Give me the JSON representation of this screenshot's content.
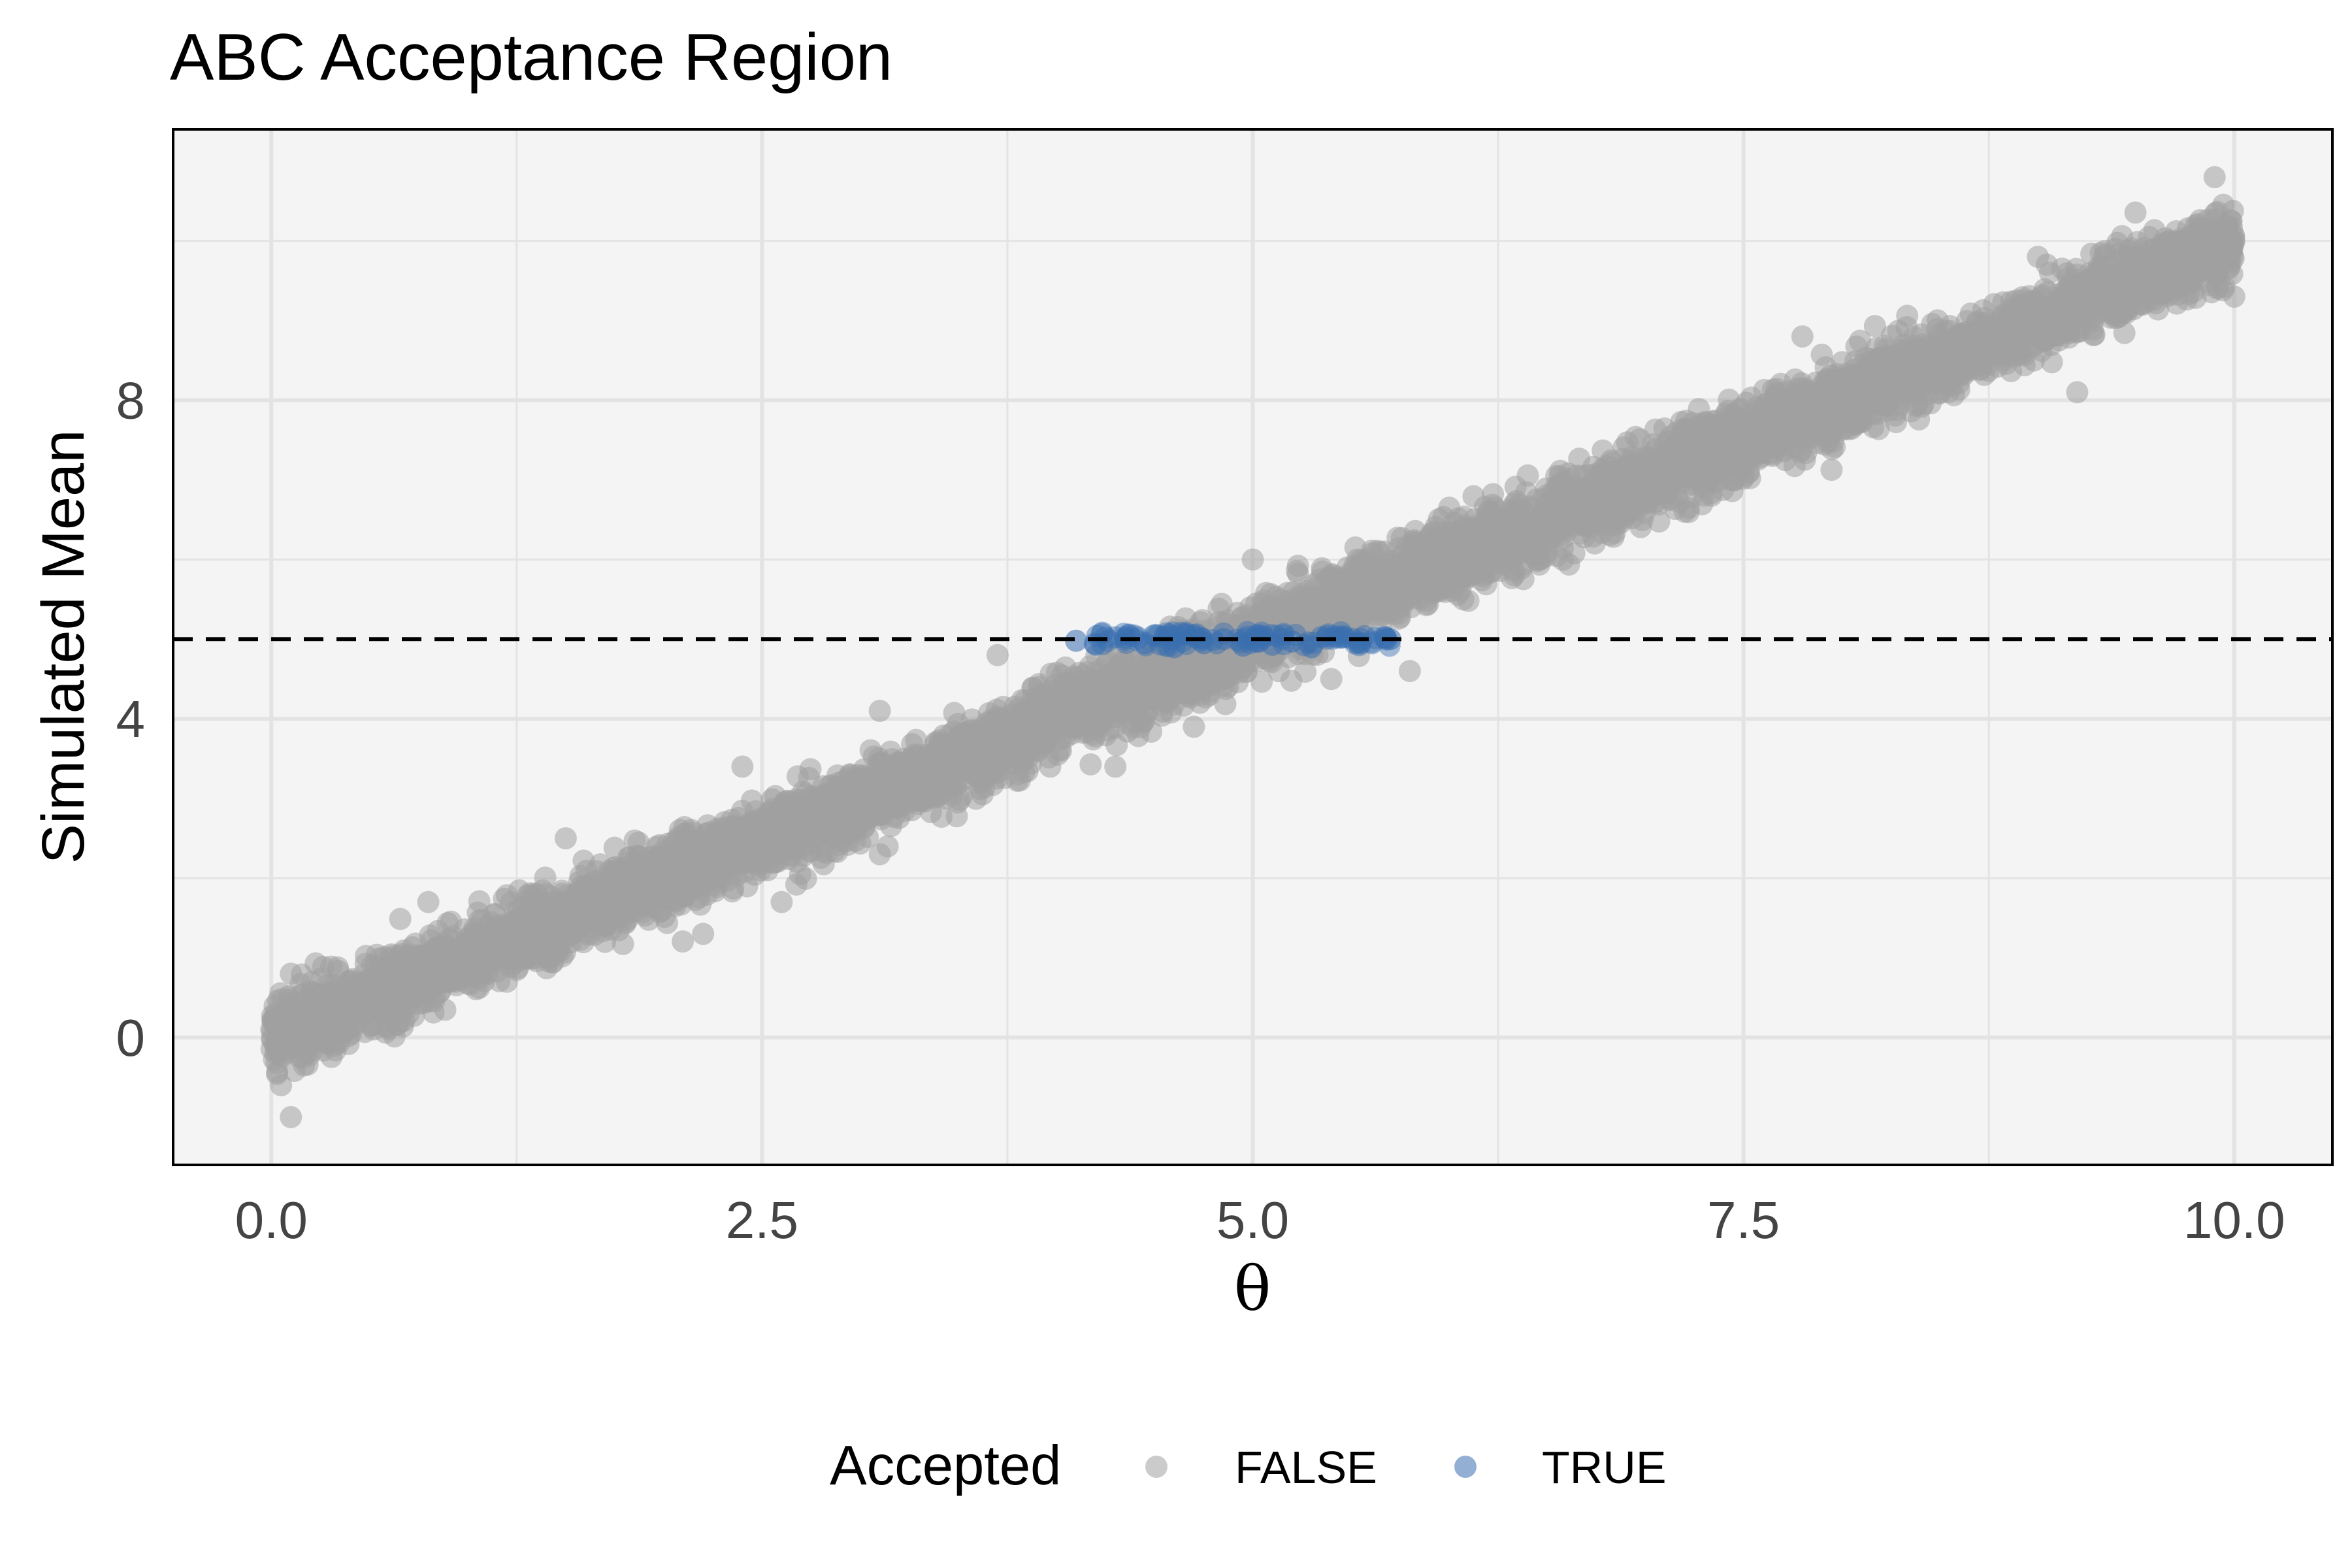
{
  "chart_data": {
    "type": "scatter",
    "title": "ABC Acceptance Region",
    "xlabel": "θ",
    "ylabel": "Simulated Mean",
    "xlim": [
      -0.5,
      10.5
    ],
    "ylim": [
      -1.6,
      11.4
    ],
    "x_ticks": [
      "0.0",
      "2.5",
      "5.0",
      "7.5",
      "10.0"
    ],
    "x_tick_values": [
      0,
      2.5,
      5,
      7.5,
      10
    ],
    "y_ticks": [
      "0",
      "4",
      "8"
    ],
    "y_tick_values": [
      0,
      4,
      8
    ],
    "grid": true,
    "reference_line": {
      "orientation": "horizontal",
      "y": 5,
      "style": "dashed",
      "color": "#000000"
    },
    "legend": {
      "title": "Accepted",
      "position": "bottom",
      "entries": [
        {
          "label": "FALSE",
          "color": "#a0a0a0"
        },
        {
          "label": "TRUE",
          "color": "#3a6fb0"
        }
      ]
    },
    "series": [
      {
        "name": "FALSE",
        "color": "#a0a0a0",
        "description_of_points": "approx. 10000 draws of theta uniform on [0, 10] with simulated mean ≈ theta plus noise; shown here as a sampled cloud",
        "points": [
          [
            0.0,
            0.1
          ],
          [
            0.05,
            -0.6
          ],
          [
            0.1,
            -1.0
          ],
          [
            0.1,
            0.8
          ],
          [
            0.2,
            0.5
          ],
          [
            0.3,
            0.0
          ],
          [
            0.5,
            0.5
          ],
          [
            0.7,
            0.3
          ],
          [
            0.8,
            1.7
          ],
          [
            1.0,
            1.0
          ],
          [
            1.2,
            0.7
          ],
          [
            1.5,
            2.5
          ],
          [
            1.7,
            1.2
          ],
          [
            2.0,
            2.0
          ],
          [
            2.2,
            1.3
          ],
          [
            2.4,
            3.4
          ],
          [
            2.6,
            1.7
          ],
          [
            3.0,
            3.0
          ],
          [
            3.1,
            4.1
          ],
          [
            3.1,
            2.3
          ],
          [
            3.5,
            3.4
          ],
          [
            3.7,
            4.8
          ],
          [
            4.0,
            4.0
          ],
          [
            4.3,
            3.4
          ],
          [
            4.6,
            4.4
          ],
          [
            4.7,
            3.9
          ],
          [
            5.0,
            5.2
          ],
          [
            5.0,
            6.0
          ],
          [
            5.4,
            4.5
          ],
          [
            5.5,
            5.5
          ],
          [
            5.8,
            4.6
          ],
          [
            6.0,
            6.0
          ],
          [
            6.2,
            6.6
          ],
          [
            6.5,
            6.5
          ],
          [
            7.0,
            7.0
          ],
          [
            7.2,
            6.6
          ],
          [
            7.5,
            7.5
          ],
          [
            7.8,
            8.8
          ],
          [
            8.0,
            8.0
          ],
          [
            8.5,
            8.5
          ],
          [
            8.9,
            9.1
          ],
          [
            9.0,
            9.8
          ],
          [
            9.2,
            8.1
          ],
          [
            9.5,
            9.5
          ],
          [
            9.9,
            10.8
          ],
          [
            10.0,
            10.0
          ],
          [
            10.0,
            9.3
          ]
        ]
      },
      {
        "name": "TRUE",
        "color": "#3a6fb0",
        "description_of_points": "accepted draws where simulated mean falls within a narrow band around 5",
        "points": [
          [
            4.1,
            4.98
          ],
          [
            4.2,
            4.93
          ],
          [
            4.35,
            5.02
          ],
          [
            4.45,
            4.95
          ],
          [
            4.55,
            5.03
          ],
          [
            4.6,
            4.9
          ],
          [
            4.7,
            5.05
          ],
          [
            4.75,
            4.95
          ],
          [
            4.85,
            5.0
          ],
          [
            4.95,
            4.92
          ],
          [
            5.05,
            5.04
          ],
          [
            5.1,
            4.93
          ],
          [
            5.2,
            4.97
          ],
          [
            5.3,
            4.9
          ],
          [
            5.45,
            5.02
          ],
          [
            5.55,
            4.95
          ],
          [
            5.7,
            5.0
          ]
        ]
      }
    ]
  }
}
